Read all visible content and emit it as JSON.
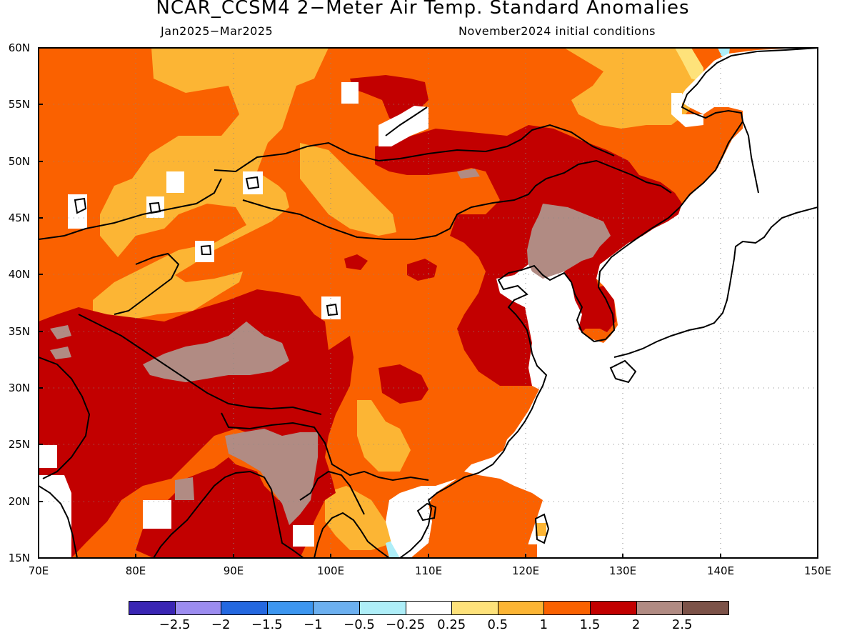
{
  "header": {
    "title": "NCAR_CCSM4 2−Meter Air Temp. Standard Anomalies",
    "period": "Jan2025−Mar2025",
    "initial_conditions": "November2024 initial conditions"
  },
  "axes": {
    "lat_ticks": [
      "60N",
      "55N",
      "50N",
      "45N",
      "40N",
      "35N",
      "30N",
      "25N",
      "20N",
      "15N"
    ],
    "lon_ticks": [
      "70E",
      "80E",
      "90E",
      "100E",
      "110E",
      "120E",
      "130E",
      "140E",
      "150E"
    ]
  },
  "map": {
    "region": "East Asia",
    "lon_range": [
      "70E",
      "150E"
    ],
    "lat_range": [
      "15N",
      "60N"
    ],
    "grid": "dotted"
  },
  "colorbar": {
    "colors": [
      "#3a25b4",
      "#9c8cf0",
      "#2468e0",
      "#3c96f0",
      "#6cb0f0",
      "#aeeef8",
      "#ffffff",
      "#fee27a",
      "#fcb534",
      "#fa6100",
      "#c20000",
      "#b18b83",
      "#7c5248"
    ],
    "labels": [
      "−2.5",
      "−2",
      "−1.5",
      "−1",
      "−0.5",
      "−0.25",
      "0.25",
      "0.5",
      "1",
      "1.5",
      "2",
      "2.5"
    ]
  }
}
